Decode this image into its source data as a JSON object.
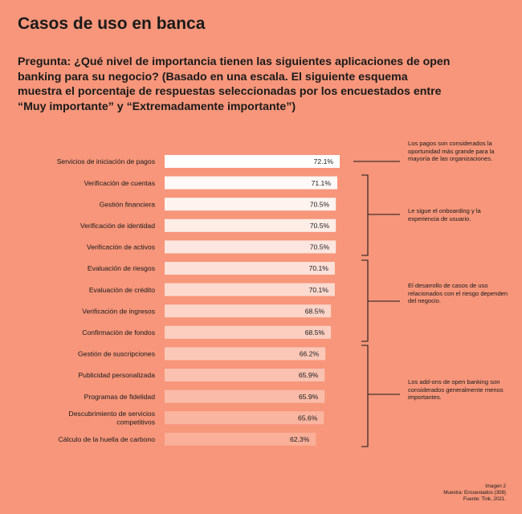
{
  "title": "Casos de uso en banca",
  "question": "Pregunta: ¿Qué nivel de importancia tienen las siguientes aplicaciones de open banking para su negocio? (Basado en una escala. El siguiente esquema muestra el porcentaje de respuestas seleccionadas por los encuestados entre “Muy importante” y “Extremadamente importante”)",
  "annotations": [
    "Los pagos son considerados la oportunidad más grande para la mayoría de las organizaciones.",
    "Le sigue el onboarding y la experiencia de usuario.",
    "El desarrollo de casos de uso relacionados con el riesgo dependen del negocio.",
    "Los add-ons de open banking son considerados generalmente menos importantes."
  ],
  "footnote": {
    "line1": "Imagen 2",
    "line2": "Muestra: Encuestados (308)",
    "line3": "Fuente: Tink, 2021."
  },
  "colors": {
    "background": "#F7967A",
    "bar_top": "#FFFFFF",
    "bar_bottom": "#F9AF98"
  },
  "chart_data": {
    "type": "bar",
    "orientation": "horizontal",
    "categories": [
      "Servicios de iniciación de pagos",
      "Verificación de cuentas",
      "Gestión financiera",
      "Verificación de identidad",
      "Verificación de activos",
      "Evaluación de riesgos",
      "Evaluación de crédito",
      "Verificación de ingresos",
      "Confirmación de fondos",
      "Gestión de suscripciones",
      "Publicidad personalizada",
      "Programas de fidelidad",
      "Descubrimiento de servicios competitivos",
      "Cálculo de la huella de carbono"
    ],
    "values": [
      72.1,
      71.1,
      70.5,
      70.5,
      70.5,
      70.1,
      70.1,
      68.5,
      68.5,
      66.2,
      65.9,
      65.9,
      65.6,
      62.3
    ],
    "value_labels": [
      "72.1%",
      "71.1%",
      "70.5%",
      "70.5%",
      "70.5%",
      "70.1%",
      "70.1%",
      "68.5%",
      "68.5%",
      "66.2%",
      "65.9%",
      "65.9%",
      "65.6%",
      "62.3%"
    ],
    "grid": false,
    "legend": "none"
  }
}
